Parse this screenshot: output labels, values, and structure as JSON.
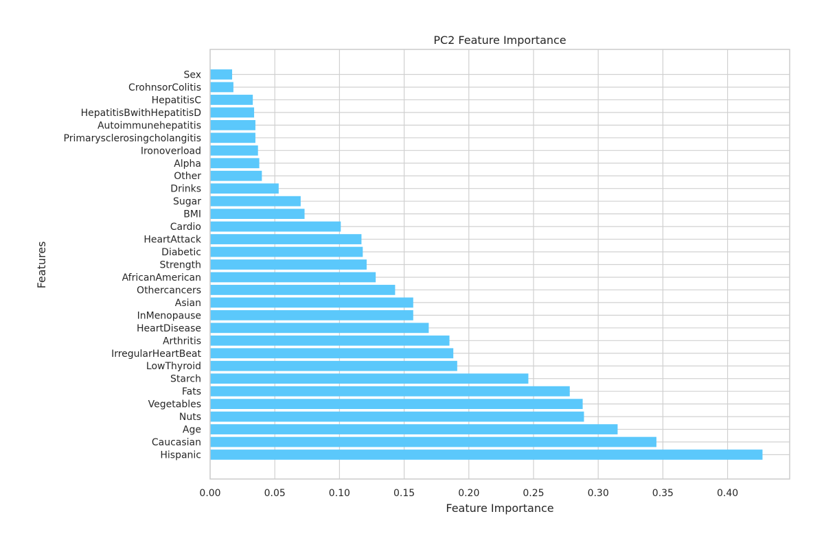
{
  "chart_data": {
    "type": "bar",
    "orientation": "horizontal",
    "title": "PC2 Feature Importance",
    "xlabel": "Feature Importance",
    "ylabel": "Features",
    "xlim": [
      0,
      0.448
    ],
    "xticks": [
      0.0,
      0.05,
      0.1,
      0.15,
      0.2,
      0.25,
      0.3,
      0.35,
      0.4
    ],
    "xtick_labels": [
      "0.00",
      "0.05",
      "0.10",
      "0.15",
      "0.20",
      "0.25",
      "0.30",
      "0.35",
      "0.40"
    ],
    "grid": true,
    "bar_color": "#5bc8fb",
    "categories": [
      "Sex",
      "CrohnsorColitis",
      "HepatitisC",
      "HepatitisBwithHepatitisD",
      "Autoimmunehepatitis",
      "Primarysclerosingcholangitis",
      "Ironoverload",
      "Alpha",
      "Other",
      "Drinks",
      "Sugar",
      "BMI",
      "Cardio",
      "HeartAttack",
      "Diabetic",
      "Strength",
      "AfricanAmerican",
      "Othercancers",
      "Asian",
      "InMenopause",
      "HeartDisease",
      "Arthritis",
      "IrregularHeartBeat",
      "LowThyroid",
      "Starch",
      "Fats",
      "Vegetables",
      "Nuts",
      "Age",
      "Caucasian",
      "Hispanic"
    ],
    "values": [
      0.017,
      0.018,
      0.033,
      0.034,
      0.035,
      0.035,
      0.037,
      0.038,
      0.04,
      0.053,
      0.07,
      0.073,
      0.101,
      0.117,
      0.118,
      0.121,
      0.128,
      0.143,
      0.157,
      0.157,
      0.169,
      0.185,
      0.188,
      0.191,
      0.246,
      0.278,
      0.288,
      0.289,
      0.315,
      0.345,
      0.427
    ]
  }
}
